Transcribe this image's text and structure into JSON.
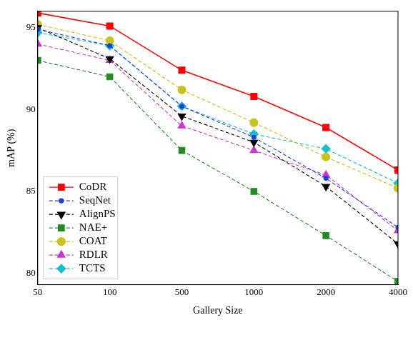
{
  "chart_data": {
    "type": "line",
    "x_label": "Gallery Size",
    "y_label": "mAP (%)",
    "categories": [
      "50",
      "100",
      "500",
      "1000",
      "2000",
      "4000"
    ],
    "ylim": [
      79.3,
      96
    ],
    "yticks": [
      80,
      85,
      90,
      95
    ],
    "grid": false,
    "legend": "lower left",
    "series": [
      {
        "name": "CoDR",
        "color": "#ff0000",
        "marker": "square",
        "line_style": "solid",
        "values": [
          95.9,
          95.1,
          92.4,
          90.8,
          88.9,
          86.3
        ]
      },
      {
        "name": "SeqNet",
        "color": "#1f3fd6",
        "marker": "circle",
        "line_style": "dashed",
        "values": [
          94.9,
          93.9,
          90.2,
          88.3,
          85.8,
          82.8
        ]
      },
      {
        "name": "AlignPS",
        "color": "#000000",
        "marker": "triangle_down",
        "line_style": "dashed",
        "values": [
          95.0,
          93.1,
          89.6,
          88.0,
          85.3,
          81.8
        ]
      },
      {
        "name": "NAE+",
        "color": "#228b22",
        "marker": "square",
        "line_style": "dashed",
        "values": [
          93.0,
          92.0,
          87.5,
          85.0,
          82.3,
          79.5
        ]
      },
      {
        "name": "COAT",
        "color": "#c8c21e",
        "marker": "hexagon",
        "line_style": "dashed",
        "values": [
          95.2,
          94.2,
          91.2,
          89.2,
          87.1,
          85.2
        ]
      },
      {
        "name": "RDLR",
        "color": "#c837d0",
        "marker": "triangle",
        "line_style": "dashed",
        "values": [
          94.0,
          93.0,
          89.0,
          87.5,
          86.0,
          82.6
        ]
      },
      {
        "name": "TCTS",
        "color": "#17becf",
        "marker": "pentagon",
        "line_style": "dashed",
        "values": [
          94.7,
          93.9,
          90.2,
          88.5,
          87.6,
          85.5
        ]
      }
    ]
  }
}
